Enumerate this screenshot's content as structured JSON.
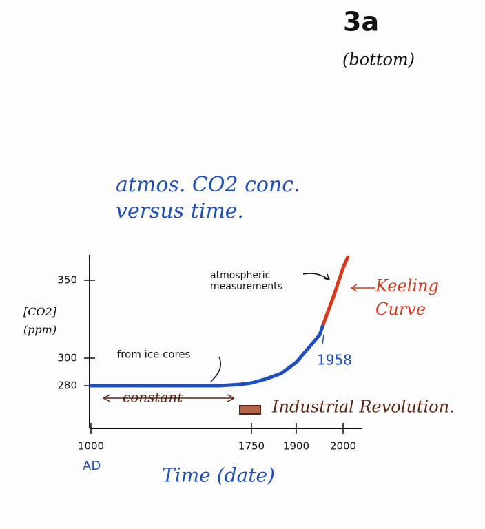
{
  "chart_data": {
    "type": "line",
    "title": "atmos. CO2 conc. versus time.",
    "page_label": "3a",
    "page_sublabel": "(bottom)",
    "y_label": "[CO2] (ppm)",
    "x_label": "Time (date)",
    "x_origin_note": "AD",
    "x": [
      1000,
      1200,
      1400,
      1600,
      1700,
      1750,
      1800,
      1850,
      1900,
      1950,
      1958,
      1980,
      2000,
      2010
    ],
    "series": [
      {
        "name": "from ice cores",
        "color": "#1d4fc0",
        "values": [
          280,
          280,
          280,
          280,
          281,
          282,
          285,
          289,
          297,
          315,
          322,
          null,
          null,
          null
        ]
      },
      {
        "name": "Keeling Curve",
        "color": "#d8391c",
        "values": [
          null,
          null,
          null,
          null,
          null,
          null,
          null,
          null,
          null,
          null,
          322,
          340,
          358,
          365
        ]
      }
    ],
    "xlim": [
      1000,
      2040
    ],
    "xticks": [
      1000,
      1750,
      1900,
      2000
    ],
    "ylim": [
      252,
      366
    ],
    "yticks": [
      280,
      300,
      350
    ],
    "annotations": {
      "measurements": "atmospheric measurements",
      "year_1958": "1958",
      "constant": "constant",
      "industrial": "Industrial Revolution."
    }
  }
}
